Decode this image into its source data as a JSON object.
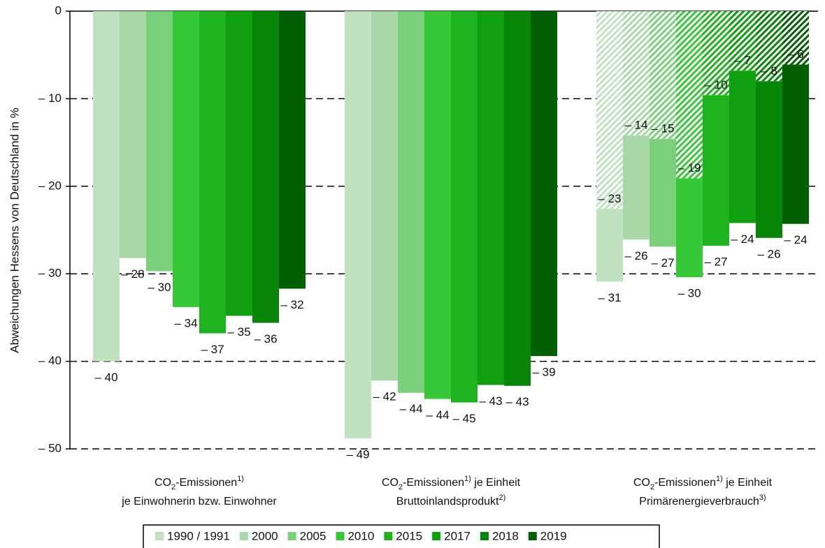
{
  "chart_data": {
    "type": "bar",
    "y_label": "Abweichungen Hessens von Deutschland in %",
    "ylim": [
      -50,
      0
    ],
    "yticks": [
      0,
      {
        "value": -10,
        "label": "– 10"
      },
      {
        "value": -20,
        "label": "– 20"
      },
      {
        "value": -30,
        "label": "– 30"
      },
      {
        "value": -40,
        "label": "– 40"
      },
      {
        "value": -50,
        "label": "– 50"
      }
    ],
    "grid": true,
    "categories": [
      [
        [
          "CO",
          {
            "sub": "2"
          },
          "-Emissionen",
          {
            "sup": "1)"
          }
        ],
        [
          "je Einwohnerin bzw. Einwohner"
        ]
      ],
      [
        [
          "CO",
          {
            "sub": "2"
          },
          "-Emissionen",
          {
            "sup": "1)"
          },
          " je Einheit"
        ],
        [
          "Bruttoinlandsprodukt",
          {
            "sup": "2)"
          }
        ]
      ],
      [
        [
          "CO",
          {
            "sub": "2"
          },
          "-Emissionen",
          {
            "sup": "1)"
          },
          " je Einheit"
        ],
        [
          "Primärenergieverbrauch",
          {
            "sup": "3)"
          }
        ]
      ]
    ],
    "series": [
      {
        "name": "1990 / 1991",
        "color": "#bfe3c0",
        "values": [
          -40,
          -48.8,
          -30.9
        ],
        "value_labels": [
          "– 40",
          "– 49",
          "– 31"
        ],
        "upper_values": [
          null,
          null,
          -22.6
        ],
        "upper_value_labels": [
          null,
          null,
          "– 23"
        ]
      },
      {
        "name": "2000",
        "color": "#a8d8a8",
        "values": [
          -28.2,
          -42.2,
          -26.1
        ],
        "value_labels": [
          "– 28",
          "– 42",
          "– 26"
        ],
        "upper_values": [
          null,
          null,
          -14.2
        ],
        "upper_value_labels": [
          null,
          null,
          "– 14"
        ]
      },
      {
        "name": "2005",
        "color": "#7bd17b",
        "values": [
          -29.7,
          -43.6,
          -26.9
        ],
        "value_labels": [
          "– 30",
          "– 44",
          "– 27"
        ],
        "upper_values": [
          null,
          null,
          -14.6
        ],
        "upper_value_labels": [
          null,
          null,
          "– 15"
        ]
      },
      {
        "name": "2010",
        "color": "#37c837",
        "values": [
          -33.8,
          -44.3,
          -30.4
        ],
        "value_labels": [
          "– 34",
          "– 44",
          "– 30"
        ],
        "upper_values": [
          null,
          null,
          -19.1
        ],
        "upper_value_labels": [
          null,
          null,
          "– 19"
        ]
      },
      {
        "name": "2015",
        "color": "#1fb31f",
        "values": [
          -36.8,
          -44.7,
          -26.8
        ],
        "value_labels": [
          "– 37",
          "– 45",
          "– 27"
        ],
        "upper_values": [
          null,
          null,
          -9.6
        ],
        "upper_value_labels": [
          null,
          null,
          "– 10"
        ]
      },
      {
        "name": "2017",
        "color": "#0f9f0f",
        "values": [
          -34.8,
          -42.7,
          -24.2
        ],
        "value_labels": [
          "– 35",
          "– 43",
          "– 24"
        ],
        "upper_values": [
          null,
          null,
          -6.8
        ],
        "upper_value_labels": [
          null,
          null,
          "– 7"
        ]
      },
      {
        "name": "2018",
        "color": "#078507",
        "values": [
          -35.6,
          -42.8,
          -25.9
        ],
        "value_labels": [
          "– 36",
          "– 43",
          "– 26"
        ],
        "upper_values": [
          null,
          null,
          -8.0
        ],
        "upper_value_labels": [
          null,
          null,
          "– 8"
        ]
      },
      {
        "name": "2019",
        "color": "#035f03",
        "values": [
          -31.7,
          -39.4,
          -24.3
        ],
        "value_labels": [
          "– 32",
          "– 39",
          "– 24"
        ],
        "upper_values": [
          null,
          null,
          -6.1
        ],
        "upper_value_labels": [
          null,
          null,
          "– 6"
        ]
      }
    ]
  }
}
